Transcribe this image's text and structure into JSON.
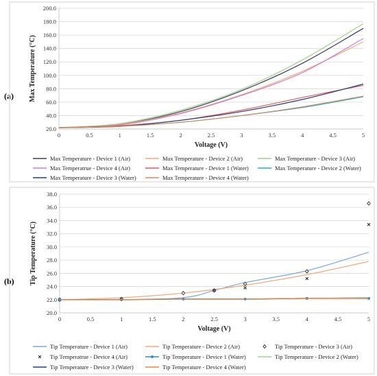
{
  "panel_labels": [
    "(a)",
    "(b)"
  ],
  "chart_data": [
    {
      "type": "line",
      "panel": "(a)",
      "xlabel": "Voltage (V)",
      "ylabel": "Max Temperature (°C)",
      "xlim": [
        0,
        5
      ],
      "ylim": [
        20,
        200
      ],
      "xticks": [
        0,
        0.5,
        1,
        1.5,
        2,
        2.5,
        3,
        3.5,
        4,
        4.5,
        5
      ],
      "xtick_labels": [
        "0",
        "0.5",
        "1",
        "1.5",
        "2",
        "2.5",
        "3",
        "3.5",
        "4",
        "4.5",
        "5"
      ],
      "yticks": [
        20,
        40,
        60,
        80,
        100,
        120,
        140,
        160,
        180,
        200
      ],
      "ytick_labels": [
        "20.0",
        "40.0",
        "60.0",
        "80.0",
        "100.0",
        "120.0",
        "140.0",
        "160.0",
        "180.0",
        "200.0"
      ],
      "grid": true,
      "legend_position": "bottom",
      "x": [
        0,
        1,
        2,
        3,
        4,
        5
      ],
      "series": [
        {
          "name": "Max Temperature - Device 1 (Air)",
          "color": "#3a3a5c",
          "values": [
            22,
            27,
            46,
            77,
            118,
            170
          ]
        },
        {
          "name": "Max Temperature - Device 2 (Air)",
          "color": "#f2a979",
          "values": [
            22,
            27,
            44,
            71,
            106,
            150
          ]
        },
        {
          "name": "Max Temperature - Device 3 (Air)",
          "color": "#9fd08a",
          "values": [
            22,
            28,
            48,
            79,
            123,
            177
          ]
        },
        {
          "name": "Max Temperatrue - Device 4 (Air)",
          "color": "#c77fd1",
          "values": [
            22,
            26,
            43,
            70,
            104,
            155
          ]
        },
        {
          "name": "Max Temperature - Device 1 (Water)",
          "color": "#e55a5a",
          "values": [
            22,
            25,
            33,
            48,
            67,
            85
          ]
        },
        {
          "name": "Max Temperature - Device 2 (Water)",
          "color": "#1fb5c4",
          "values": [
            22,
            24,
            30,
            40,
            52,
            68
          ]
        },
        {
          "name": "Max Temperature - Device 3 (Water)",
          "color": "#1f3f7a",
          "values": [
            22,
            24,
            33,
            46,
            64,
            87
          ]
        },
        {
          "name": "Max Temperature - Device 4 (Water)",
          "color": "#d98a5e",
          "values": [
            22,
            24,
            30,
            40,
            53,
            69
          ]
        }
      ]
    },
    {
      "type": "line",
      "panel": "(b)",
      "xlabel": "Voltage (V)",
      "ylabel": "Tip Temperature (°C)",
      "xlim": [
        0,
        5
      ],
      "ylim": [
        20,
        38
      ],
      "xticks": [
        0,
        0.5,
        1,
        1.5,
        2,
        2.5,
        3,
        3.5,
        4,
        4.5,
        5
      ],
      "xtick_labels": [
        "0",
        "0.5",
        "1",
        "1.5",
        "2",
        "2.5",
        "3",
        "3.5",
        "4",
        "4.5",
        "5"
      ],
      "yticks": [
        20,
        22,
        24,
        26,
        28,
        30,
        32,
        34,
        36,
        38
      ],
      "ytick_labels": [
        "20.0",
        "22.0",
        "24.0",
        "26.0",
        "28.0",
        "30.0",
        "32.0",
        "34.0",
        "36.0",
        "38.0"
      ],
      "grid": true,
      "legend_position": "bottom",
      "series": [
        {
          "name": "Tip Temperature - Device 1 (Air)",
          "color": "#7ba7d9",
          "style": "line",
          "x": [
            0,
            1,
            2,
            2.5,
            3,
            4,
            5
          ],
          "values": [
            22.0,
            22.0,
            22.3,
            23.4,
            24.6,
            26.4,
            29.2
          ]
        },
        {
          "name": "Tip Temperature - Device 2 (Air)",
          "color": "#f2a979",
          "style": "line",
          "x": [
            0,
            1,
            2,
            3,
            4,
            5
          ],
          "values": [
            22.0,
            22.3,
            23.0,
            24.2,
            25.8,
            27.8
          ]
        },
        {
          "name": "Tip Temperature - Device 3 (Air)",
          "color": "#333333",
          "style": "diamond",
          "x": [
            0,
            1,
            2,
            2.5,
            3,
            4,
            5
          ],
          "values": [
            22.0,
            22.1,
            23.0,
            23.4,
            24.4,
            26.3,
            36.6
          ]
        },
        {
          "name": "Tip Temperatrue - Device 4 (Air)",
          "color": "#222222",
          "style": "x",
          "x": [
            0,
            1,
            2.5,
            3,
            4,
            5
          ],
          "values": [
            22.0,
            22.1,
            23.4,
            23.8,
            25.2,
            33.4
          ]
        },
        {
          "name": "Tip Temperature - Device 1 (Water)",
          "color": "#2f8fd6",
          "style": "line-marker",
          "x": [
            0,
            1,
            2,
            3,
            4,
            5
          ],
          "values": [
            22.0,
            22.0,
            22.1,
            22.1,
            22.2,
            22.2
          ]
        },
        {
          "name": "Tip Temperature - Device 2 (Water)",
          "color": "#9fd08a",
          "style": "line",
          "x": [
            0,
            1,
            2,
            3,
            4,
            5
          ],
          "values": [
            22.0,
            22.0,
            22.1,
            22.1,
            22.2,
            22.3
          ]
        },
        {
          "name": "Tip Temperature - Device 3 (Water)",
          "color": "#1f3f7a",
          "style": "line",
          "x": [
            0,
            1,
            2,
            3,
            4,
            5
          ],
          "values": [
            22.0,
            22.0,
            22.1,
            22.1,
            22.2,
            22.25
          ]
        },
        {
          "name": "Tip Temperature - Device 4 (Water)",
          "color": "#e8873f",
          "style": "line",
          "x": [
            0,
            1,
            2,
            3,
            4,
            5
          ],
          "values": [
            22.0,
            22.0,
            22.1,
            22.1,
            22.2,
            22.25
          ]
        }
      ]
    }
  ]
}
